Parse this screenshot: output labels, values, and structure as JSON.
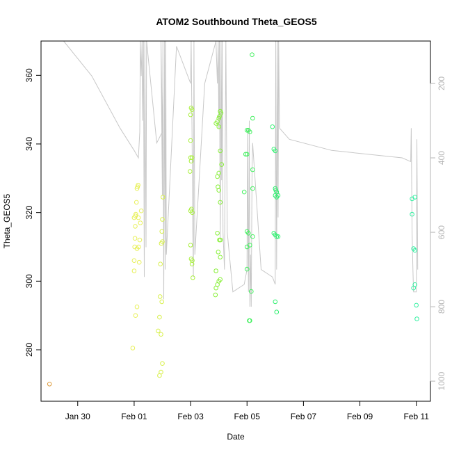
{
  "chart_data": {
    "type": "scatter",
    "title": "ATOM2 Southbound Theta_GEOS5",
    "xlabel": "Date",
    "ylabel": "Theta_GEOS5",
    "x_unit": "days (0 = Jan 30)",
    "xlim": [
      -1.3,
      12.5
    ],
    "ylim": [
      265,
      370
    ],
    "x_ticks": [
      {
        "value": 0,
        "label": "Jan 30"
      },
      {
        "value": 2,
        "label": "Feb 01"
      },
      {
        "value": 4,
        "label": "Feb 03"
      },
      {
        "value": 6,
        "label": "Feb 05"
      },
      {
        "value": 8,
        "label": "Feb 07"
      },
      {
        "value": 10,
        "label": "Feb 09"
      },
      {
        "value": 12,
        "label": "Feb 11"
      }
    ],
    "y_ticks": [
      280,
      300,
      320,
      340,
      360
    ],
    "right_axis": {
      "label": "",
      "lim_top": 86,
      "lim_bottom": 1054,
      "ticks": [
        200,
        400,
        600,
        800,
        1000
      ],
      "color": "#b5b5b5"
    },
    "grid": false,
    "legend": "none",
    "flight_track_color": "#c8c8c8",
    "flight_track": [
      [
        -0.65,
        86
      ],
      [
        -0.5,
        86
      ],
      [
        0.5,
        180
      ],
      [
        1.0,
        250
      ],
      [
        1.5,
        320
      ],
      [
        2.0,
        380
      ],
      [
        2.15,
        400
      ],
      [
        2.2,
        330
      ],
      [
        2.22,
        86
      ],
      [
        2.25,
        180
      ],
      [
        2.28,
        86
      ],
      [
        2.3,
        300
      ],
      [
        2.33,
        86
      ],
      [
        2.36,
        720
      ],
      [
        2.38,
        86
      ],
      [
        2.42,
        640
      ],
      [
        2.44,
        86
      ],
      [
        2.8,
        360
      ],
      [
        3.0,
        330
      ],
      [
        2.95,
        86
      ],
      [
        3.0,
        500
      ],
      [
        3.02,
        86
      ],
      [
        3.05,
        780
      ],
      [
        3.08,
        86
      ],
      [
        3.1,
        700
      ],
      [
        3.12,
        86
      ],
      [
        3.14,
        660
      ],
      [
        3.5,
        100
      ],
      [
        4.0,
        200
      ],
      [
        4.02,
        86
      ],
      [
        4.05,
        320
      ],
      [
        4.08,
        600
      ],
      [
        4.1,
        720
      ],
      [
        4.12,
        86
      ],
      [
        4.15,
        660
      ],
      [
        4.5,
        200
      ],
      [
        4.9,
        86
      ],
      [
        4.95,
        200
      ],
      [
        4.98,
        86
      ],
      [
        5.0,
        320
      ],
      [
        5.02,
        86
      ],
      [
        5.05,
        620
      ],
      [
        5.08,
        86
      ],
      [
        5.1,
        460
      ],
      [
        5.12,
        86
      ],
      [
        5.15,
        600
      ],
      [
        5.2,
        700
      ],
      [
        5.25,
        86
      ],
      [
        5.3,
        600
      ],
      [
        5.5,
        760
      ],
      [
        5.9,
        740
      ],
      [
        6.0,
        700
      ],
      [
        6.02,
        320
      ],
      [
        6.05,
        760
      ],
      [
        6.08,
        300
      ],
      [
        6.1,
        800
      ],
      [
        6.12,
        660
      ],
      [
        6.15,
        800
      ],
      [
        6.18,
        420
      ],
      [
        6.2,
        360
      ],
      [
        6.5,
        700
      ],
      [
        6.9,
        720
      ],
      [
        7.0,
        740
      ],
      [
        7.02,
        86
      ],
      [
        7.05,
        700
      ],
      [
        7.08,
        86
      ],
      [
        7.1,
        560
      ],
      [
        7.12,
        86
      ],
      [
        7.15,
        320
      ],
      [
        7.5,
        350
      ],
      [
        9.0,
        380
      ],
      [
        11.5,
        400
      ],
      [
        11.8,
        410
      ],
      [
        11.82,
        320
      ],
      [
        11.85,
        600
      ],
      [
        11.88,
        700
      ],
      [
        11.9,
        760
      ],
      [
        12.0,
        760
      ],
      [
        12.02,
        350
      ],
      [
        12.05,
        700
      ]
    ],
    "series": [
      {
        "color": "#dd9a3a",
        "points": [
          [
            -1.0,
            270
          ]
        ]
      },
      {
        "color": "#e8f05a",
        "points": [
          [
            1.95,
            280.5
          ],
          [
            2.0,
            303
          ],
          [
            2.0,
            306
          ],
          [
            2.02,
            310
          ],
          [
            2.03,
            312.5
          ],
          [
            2.04,
            316
          ],
          [
            2.05,
            319
          ],
          [
            2.06,
            319.5
          ],
          [
            2.08,
            323
          ],
          [
            2.1,
            327
          ],
          [
            2.12,
            327.5
          ],
          [
            2.14,
            328
          ],
          [
            2.16,
            310
          ],
          [
            2.18,
            305.5
          ],
          [
            2.2,
            312
          ],
          [
            2.22,
            317
          ],
          [
            2.25,
            320.5
          ],
          [
            2.05,
            290
          ],
          [
            2.1,
            292.5
          ],
          [
            2.0,
            318.5
          ],
          [
            2.15,
            318.5
          ],
          [
            2.1,
            309.5
          ]
        ]
      },
      {
        "color": "#d8f04a",
        "points": [
          [
            2.85,
            285.5
          ],
          [
            2.9,
            289.5
          ],
          [
            2.92,
            295.5
          ],
          [
            2.95,
            284.5
          ],
          [
            2.98,
            294
          ],
          [
            3.0,
            276
          ],
          [
            2.95,
            273.5
          ],
          [
            2.9,
            272.5
          ],
          [
            2.93,
            305
          ],
          [
            2.96,
            311
          ],
          [
            3.0,
            311.5
          ],
          [
            2.98,
            314.5
          ],
          [
            3.0,
            318
          ],
          [
            3.02,
            324.5
          ]
        ]
      },
      {
        "color": "#a8f03a",
        "points": [
          [
            4.0,
            348.5
          ],
          [
            4.02,
            350.5
          ],
          [
            4.05,
            350
          ],
          [
            4.0,
            341
          ],
          [
            4.0,
            336
          ],
          [
            4.02,
            335
          ],
          [
            4.05,
            336
          ],
          [
            3.98,
            332
          ],
          [
            4.0,
            320.5
          ],
          [
            4.03,
            321
          ],
          [
            4.06,
            320
          ],
          [
            4.0,
            310.5
          ],
          [
            4.02,
            306.5
          ],
          [
            4.05,
            305
          ],
          [
            4.06,
            306
          ],
          [
            4.08,
            301
          ]
        ]
      },
      {
        "color": "#88f038",
        "points": [
          [
            4.9,
            346
          ],
          [
            4.95,
            346.5
          ],
          [
            5.0,
            347.5
          ],
          [
            5.02,
            348
          ],
          [
            5.05,
            349.5
          ],
          [
            5.08,
            349
          ],
          [
            5.0,
            345
          ],
          [
            5.05,
            338
          ],
          [
            4.95,
            330.5
          ],
          [
            5.0,
            331.5
          ],
          [
            5.1,
            334
          ],
          [
            4.97,
            327.5
          ],
          [
            5.0,
            326.5
          ],
          [
            5.05,
            323
          ],
          [
            4.95,
            314
          ],
          [
            5.02,
            312
          ],
          [
            5.06,
            312
          ],
          [
            4.98,
            308.5
          ],
          [
            5.05,
            307
          ],
          [
            4.9,
            303
          ],
          [
            4.95,
            299
          ],
          [
            5.0,
            300
          ],
          [
            5.05,
            300.5
          ],
          [
            4.9,
            298
          ],
          [
            4.88,
            296
          ]
        ]
      },
      {
        "color": "#44f060",
        "points": [
          [
            6.18,
            366
          ],
          [
            6.0,
            344
          ],
          [
            6.05,
            344
          ],
          [
            6.1,
            343.5
          ],
          [
            6.2,
            347.5
          ],
          [
            5.95,
            337
          ],
          [
            6.0,
            337
          ],
          [
            6.2,
            332.5
          ],
          [
            5.9,
            326
          ],
          [
            6.2,
            327
          ],
          [
            6.0,
            314.5
          ],
          [
            6.05,
            314
          ],
          [
            6.2,
            313
          ],
          [
            6.0,
            310
          ],
          [
            6.1,
            310.5
          ],
          [
            6.0,
            303.5
          ],
          [
            6.15,
            297
          ],
          [
            6.08,
            288.5
          ],
          [
            6.1,
            288.5
          ]
        ]
      },
      {
        "color": "#30f070",
        "points": [
          [
            6.9,
            345
          ],
          [
            6.95,
            338.5
          ],
          [
            7.0,
            338
          ],
          [
            7.0,
            327
          ],
          [
            7.02,
            326.5
          ],
          [
            7.05,
            326
          ],
          [
            7.0,
            325
          ],
          [
            7.05,
            324.5
          ],
          [
            7.1,
            325
          ],
          [
            6.95,
            314
          ],
          [
            7.0,
            313.5
          ],
          [
            7.05,
            313
          ],
          [
            7.1,
            313
          ],
          [
            7.0,
            294
          ],
          [
            7.05,
            291
          ]
        ]
      },
      {
        "color": "#30f0a0",
        "points": [
          [
            11.85,
            324
          ],
          [
            11.95,
            324.5
          ],
          [
            11.85,
            319.5
          ],
          [
            11.9,
            309.5
          ],
          [
            11.95,
            309
          ],
          [
            11.95,
            299
          ],
          [
            11.9,
            298
          ],
          [
            12.0,
            293
          ],
          [
            12.02,
            289
          ]
        ]
      }
    ]
  }
}
